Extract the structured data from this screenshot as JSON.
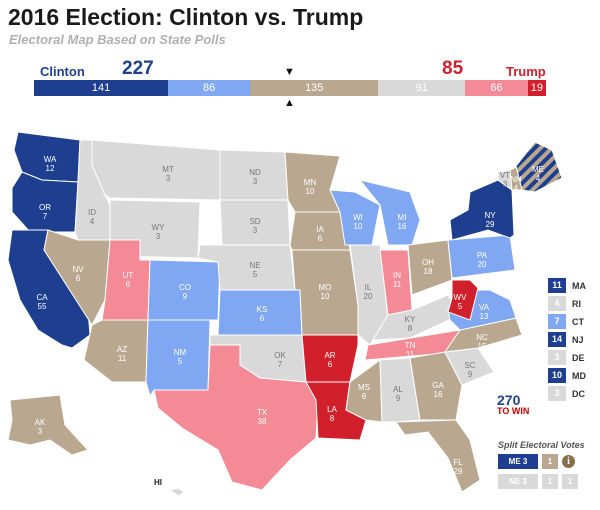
{
  "header": {
    "title": "2016 Election: Clinton vs. Trump",
    "subtitle": "Electoral Map Based on State Polls"
  },
  "candidates": {
    "clinton": {
      "name": "Clinton",
      "total": "227",
      "color": "#1e3f8f"
    },
    "trump": {
      "name": "Trump",
      "total": "85",
      "color": "#d11f2b"
    }
  },
  "bar_segments": [
    {
      "label": "141",
      "value": 141,
      "color": "#1e3f8f"
    },
    {
      "label": "86",
      "value": 86,
      "color": "#7fa7f2"
    },
    {
      "label": "135",
      "value": 135,
      "color": "#b9a88f"
    },
    {
      "label": "91",
      "value": 91,
      "color": "#d9d9d9"
    },
    {
      "label": "66",
      "value": 66,
      "color": "#f48a96"
    },
    {
      "label": "19",
      "value": 19,
      "color": "#d11f2b"
    }
  ],
  "colors": {
    "safe_d": "#1e3f8f",
    "lean_d": "#7fa7f2",
    "tossup": "#b9a88f",
    "no_poll": "#d9d9d9",
    "lean_r": "#f48a96",
    "safe_r": "#d11f2b"
  },
  "states": [
    {
      "abbr": "WA",
      "ev": "12",
      "cat": "safe_d"
    },
    {
      "abbr": "OR",
      "ev": "7",
      "cat": "safe_d"
    },
    {
      "abbr": "CA",
      "ev": "55",
      "cat": "safe_d"
    },
    {
      "abbr": "ID",
      "ev": "4",
      "cat": "no_poll"
    },
    {
      "abbr": "NV",
      "ev": "6",
      "cat": "tossup"
    },
    {
      "abbr": "MT",
      "ev": "3",
      "cat": "no_poll"
    },
    {
      "abbr": "WY",
      "ev": "3",
      "cat": "no_poll"
    },
    {
      "abbr": "UT",
      "ev": "6",
      "cat": "lean_r"
    },
    {
      "abbr": "AZ",
      "ev": "11",
      "cat": "tossup"
    },
    {
      "abbr": "CO",
      "ev": "9",
      "cat": "lean_d"
    },
    {
      "abbr": "NM",
      "ev": "5",
      "cat": "lean_d"
    },
    {
      "abbr": "ND",
      "ev": "3",
      "cat": "no_poll"
    },
    {
      "abbr": "SD",
      "ev": "3",
      "cat": "no_poll"
    },
    {
      "abbr": "NE",
      "ev": "5",
      "cat": "no_poll"
    },
    {
      "abbr": "KS",
      "ev": "6",
      "cat": "lean_d"
    },
    {
      "abbr": "OK",
      "ev": "7",
      "cat": "no_poll"
    },
    {
      "abbr": "TX",
      "ev": "38",
      "cat": "lean_r"
    },
    {
      "abbr": "MN",
      "ev": "10",
      "cat": "tossup"
    },
    {
      "abbr": "IA",
      "ev": "6",
      "cat": "tossup"
    },
    {
      "abbr": "MO",
      "ev": "10",
      "cat": "tossup"
    },
    {
      "abbr": "AR",
      "ev": "6",
      "cat": "safe_r"
    },
    {
      "abbr": "LA",
      "ev": "8",
      "cat": "safe_r"
    },
    {
      "abbr": "WI",
      "ev": "10",
      "cat": "lean_d"
    },
    {
      "abbr": "IL",
      "ev": "20",
      "cat": "no_poll"
    },
    {
      "abbr": "MI",
      "ev": "16",
      "cat": "lean_d"
    },
    {
      "abbr": "IN",
      "ev": "11",
      "cat": "lean_r"
    },
    {
      "abbr": "OH",
      "ev": "18",
      "cat": "tossup"
    },
    {
      "abbr": "KY",
      "ev": "8",
      "cat": "no_poll"
    },
    {
      "abbr": "TN",
      "ev": "11",
      "cat": "lean_r"
    },
    {
      "abbr": "MS",
      "ev": "6",
      "cat": "tossup"
    },
    {
      "abbr": "AL",
      "ev": "9",
      "cat": "no_poll"
    },
    {
      "abbr": "GA",
      "ev": "16",
      "cat": "tossup"
    },
    {
      "abbr": "FL",
      "ev": "29",
      "cat": "tossup"
    },
    {
      "abbr": "SC",
      "ev": "9",
      "cat": "no_poll"
    },
    {
      "abbr": "NC",
      "ev": "15",
      "cat": "tossup"
    },
    {
      "abbr": "VA",
      "ev": "13",
      "cat": "lean_d"
    },
    {
      "abbr": "WV",
      "ev": "5",
      "cat": "safe_r"
    },
    {
      "abbr": "PA",
      "ev": "20",
      "cat": "lean_d"
    },
    {
      "abbr": "NY",
      "ev": "29",
      "cat": "safe_d"
    },
    {
      "abbr": "VT",
      "ev": "3",
      "cat": "no_poll"
    },
    {
      "abbr": "NH",
      "ev": "4",
      "cat": "tossup"
    },
    {
      "abbr": "ME",
      "ev": "4",
      "cat": "safe_d"
    },
    {
      "abbr": "AK",
      "ev": "3",
      "cat": "tossup"
    },
    {
      "abbr": "HI",
      "ev": "",
      "cat": "no_poll"
    }
  ],
  "northeast": [
    {
      "ev": "11",
      "code": "MA",
      "cat": "safe_d"
    },
    {
      "ev": "4",
      "code": "RI",
      "cat": "no_poll"
    },
    {
      "ev": "7",
      "code": "CT",
      "cat": "lean_d"
    },
    {
      "ev": "14",
      "code": "NJ",
      "cat": "safe_d"
    },
    {
      "ev": "3",
      "code": "DE",
      "cat": "no_poll"
    },
    {
      "ev": "10",
      "code": "MD",
      "cat": "safe_d"
    },
    {
      "ev": "3",
      "code": "DC",
      "cat": "no_poll"
    }
  ],
  "logo": {
    "number": "270",
    "sub": "TO WIN"
  },
  "split": {
    "title": "Split Electoral Votes",
    "rows": [
      {
        "code": "ME 3",
        "code_cat": "safe_d",
        "district": "1",
        "district_cat": "tossup",
        "info": "i"
      },
      {
        "code": "NE 3",
        "code_cat": "no_poll",
        "d1": "1",
        "d2": "1"
      }
    ]
  }
}
